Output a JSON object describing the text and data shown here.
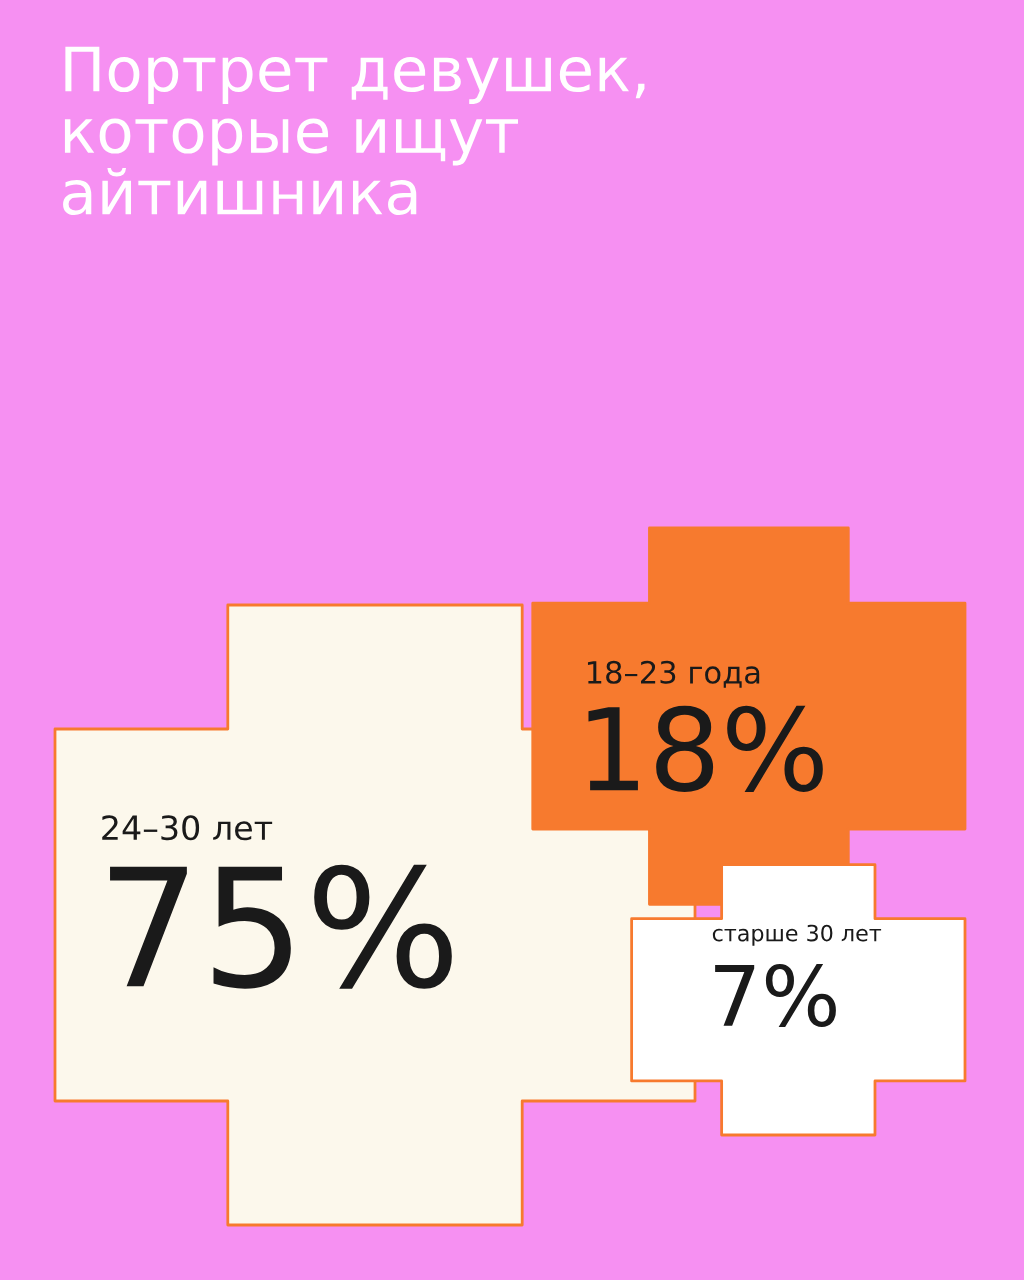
{
  "chart_data": {
    "type": "other",
    "title": "Портрет девушек,\nкоторые ищут\nайтишника",
    "categories": [
      "24–30 лет",
      "18–23 года",
      "старше 30 лет"
    ],
    "values": [
      75,
      18,
      7
    ],
    "value_labels": [
      "75%",
      "18%",
      "7%"
    ],
    "colors": [
      "#fcf8ec",
      "#f77a2e",
      "#ffffff"
    ]
  }
}
